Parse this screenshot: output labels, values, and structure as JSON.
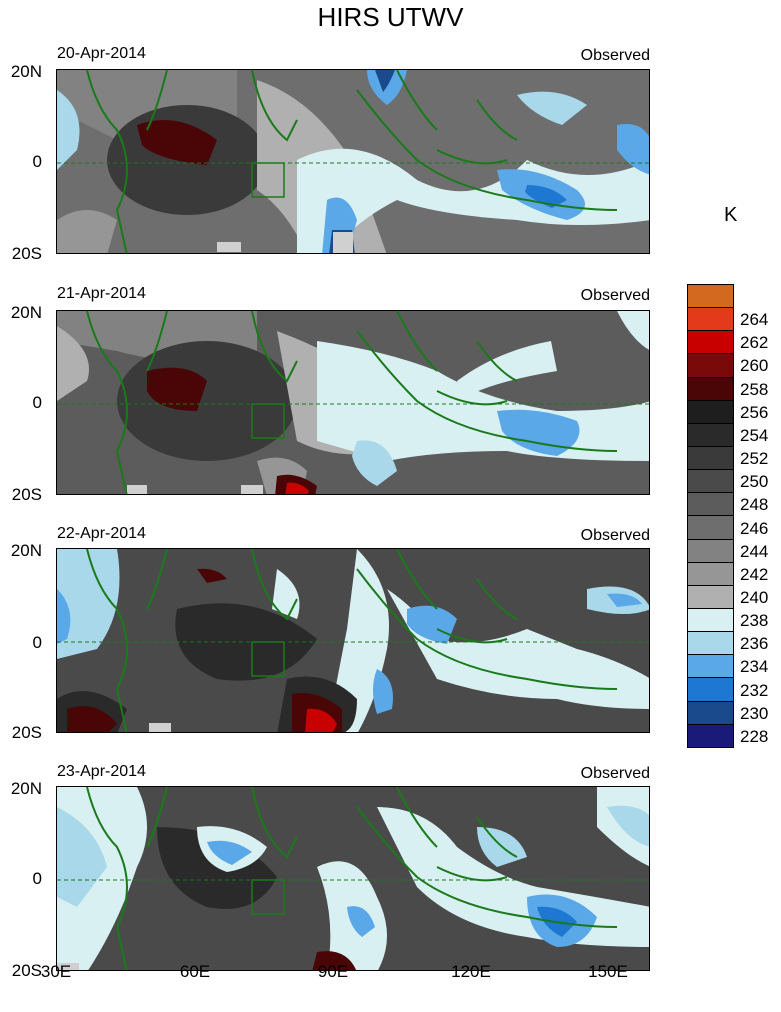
{
  "title": "HIRS UTWV",
  "unit_label": "K",
  "panels": [
    {
      "date": "20-Apr-2014",
      "label": "Observed"
    },
    {
      "date": "21-Apr-2014",
      "label": "Observed"
    },
    {
      "date": "22-Apr-2014",
      "label": "Observed"
    },
    {
      "date": "23-Apr-2014",
      "label": "Observed"
    }
  ],
  "lat_labels": [
    "20N",
    "0",
    "20S"
  ],
  "lon_labels": [
    "30E",
    "60E",
    "90E",
    "120E",
    "150E"
  ],
  "colorbar": {
    "labels": [
      "264",
      "262",
      "260",
      "258",
      "256",
      "254",
      "252",
      "250",
      "248",
      "246",
      "244",
      "242",
      "240",
      "238",
      "236",
      "234",
      "232",
      "230",
      "228"
    ],
    "colors": [
      "#d2691e",
      "#e23a1a",
      "#c80000",
      "#7a0a0a",
      "#4a0606",
      "#1e1e1e",
      "#2a2a2a",
      "#3a3a3a",
      "#4a4a4a",
      "#5c5c5c",
      "#6e6e6e",
      "#828282",
      "#969696",
      "#b0b0b0",
      "#d8f0f2",
      "#a8d8ea",
      "#5aa8e8",
      "#1e78d2",
      "#1a4a8c",
      "#1a1a78"
    ]
  }
}
